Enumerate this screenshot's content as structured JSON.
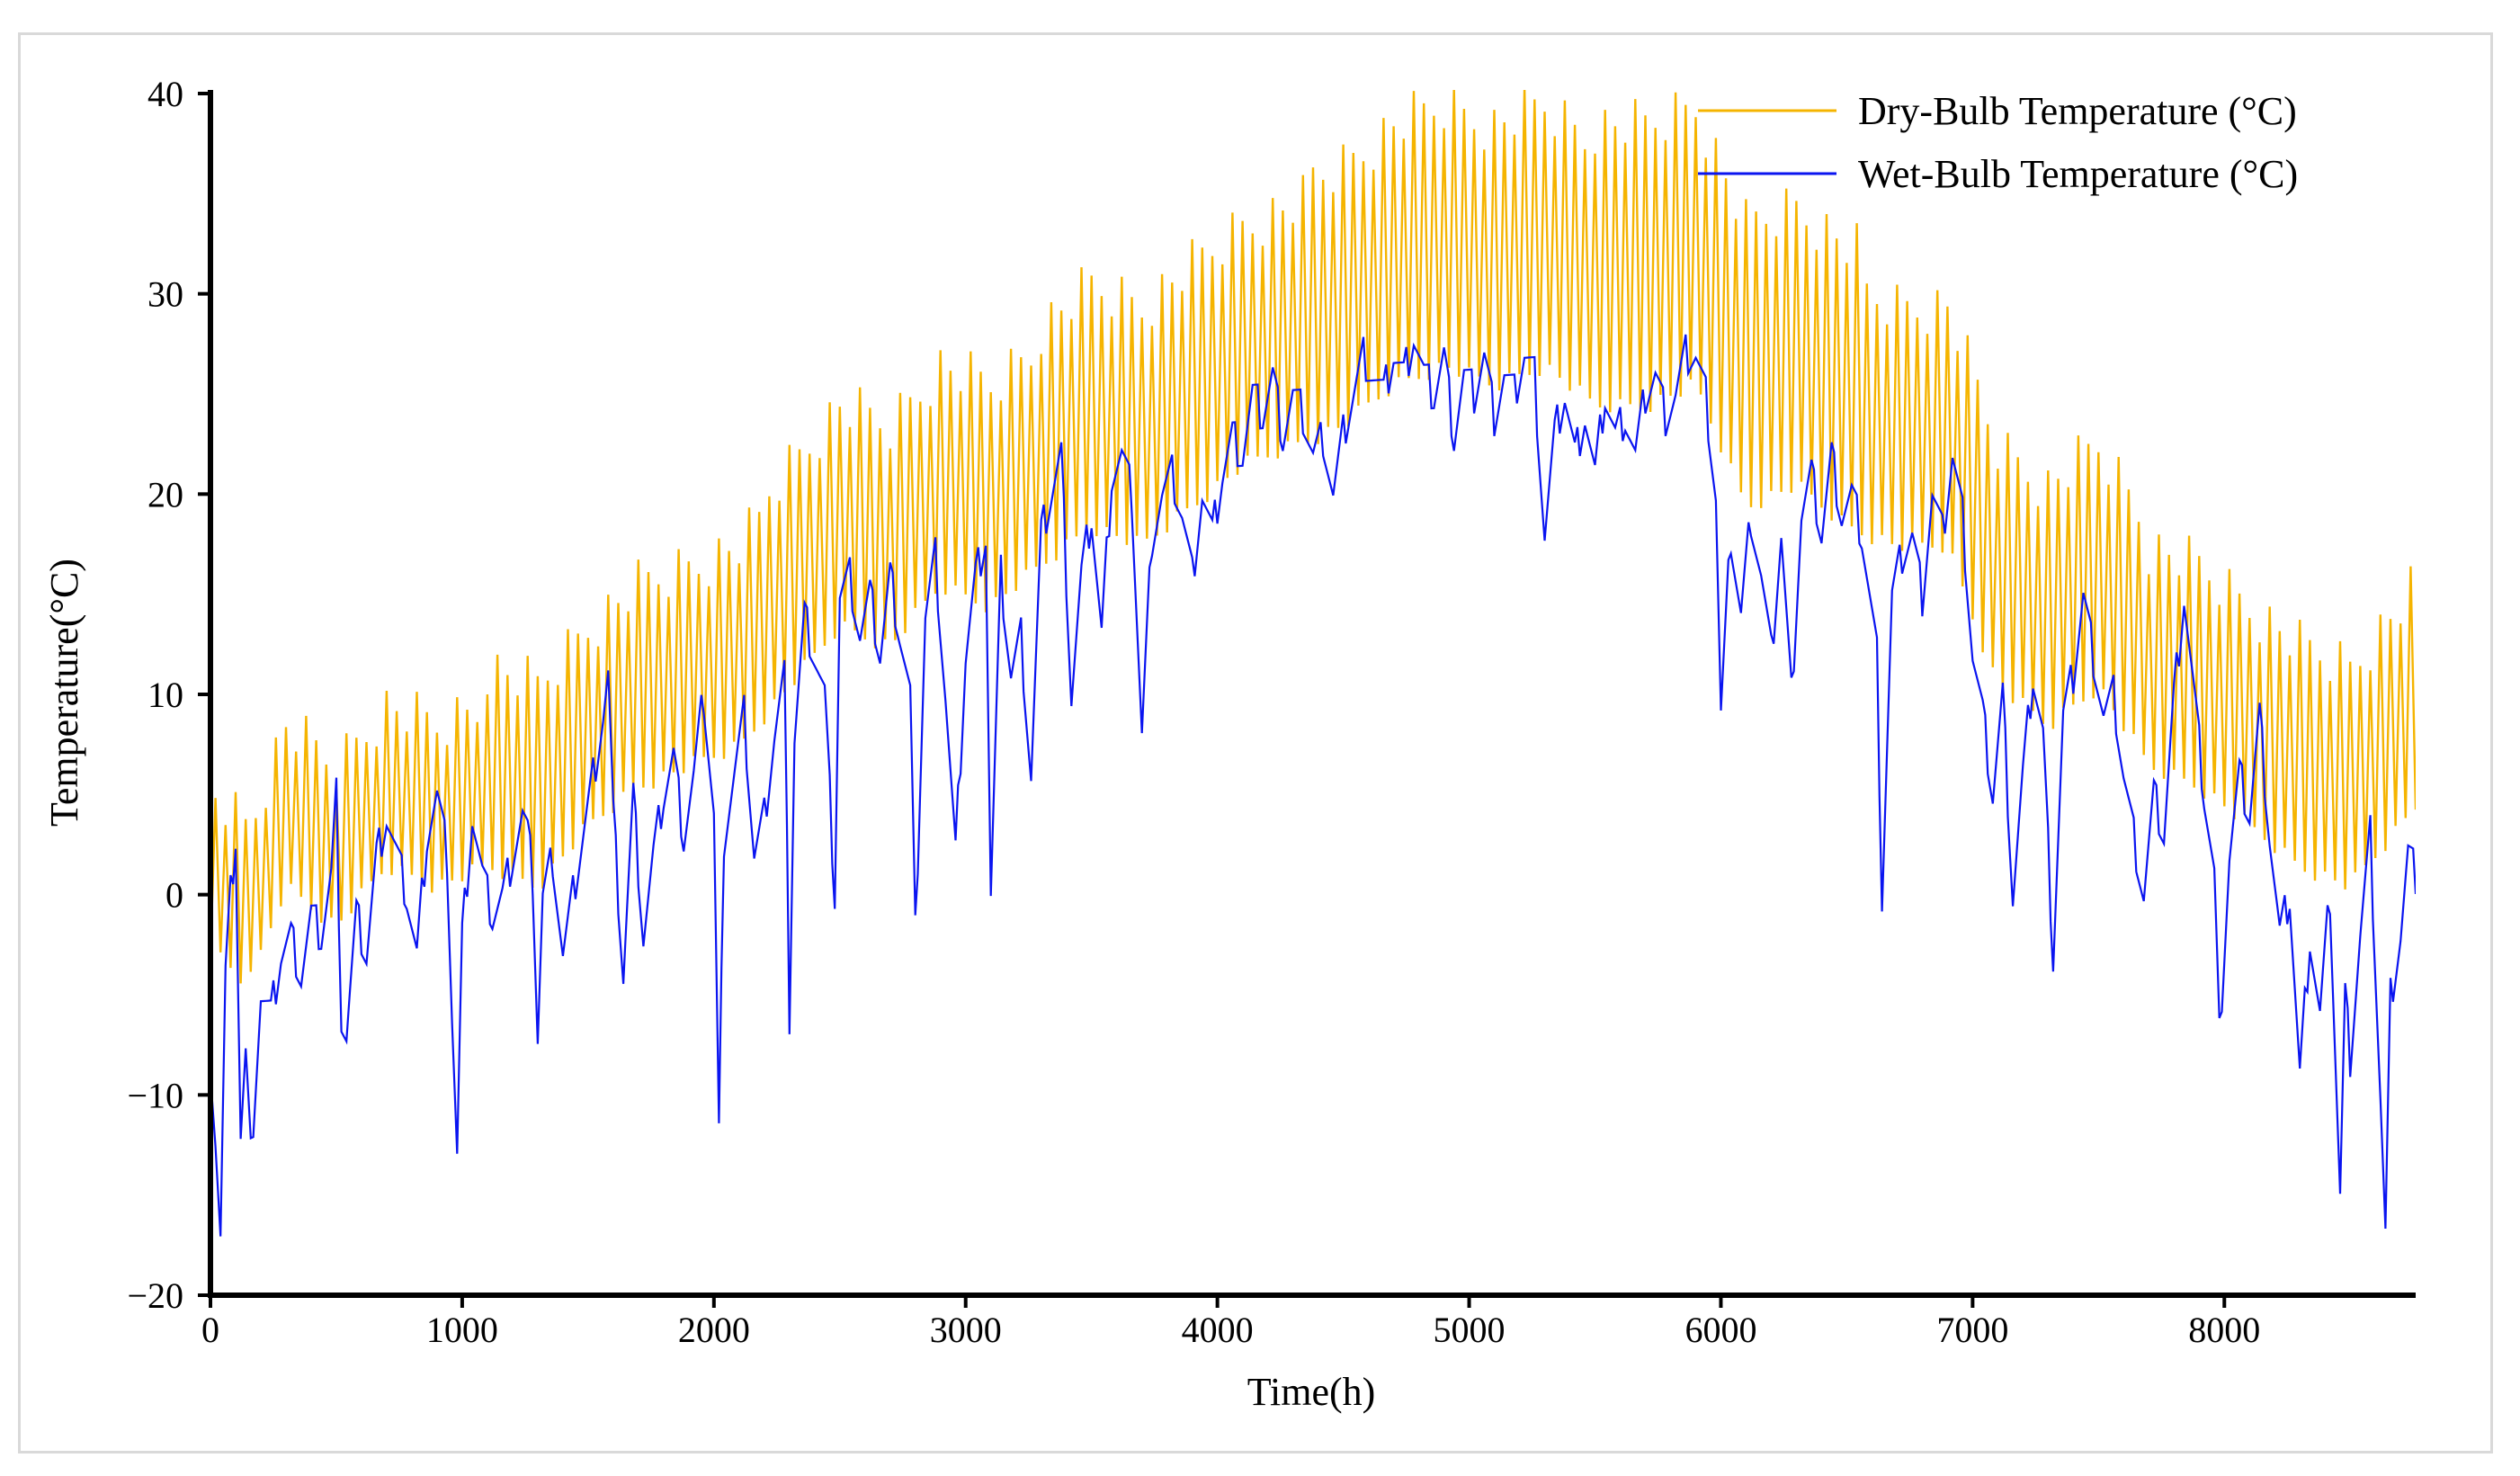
{
  "chart_data": {
    "type": "line",
    "title": "",
    "xlabel": "Time(h)",
    "ylabel": "Temperature(°C)",
    "xlim": [
      0,
      8760
    ],
    "ylim": [
      -20,
      40
    ],
    "xticks": [
      0,
      1000,
      2000,
      3000,
      4000,
      5000,
      6000,
      7000,
      8000
    ],
    "yticks": [
      -20,
      -10,
      0,
      10,
      20,
      30,
      40
    ],
    "xtick_labels": [
      "0",
      "1000",
      "2000",
      "3000",
      "4000",
      "5000",
      "6000",
      "7000",
      "8000"
    ],
    "ytick_labels": [
      "−20",
      "−10",
      "0",
      "10",
      "20",
      "30",
      "40"
    ],
    "grid": false,
    "legend_position": "top-right",
    "sampling_step_hours": 20,
    "series": [
      {
        "name": "Dry-Bulb Temperature (°C)",
        "color": "#f5b400",
        "daily_range": [
          7,
          9,
          10,
          11,
          12,
          13,
          11,
          10,
          8
        ],
        "lows": [
          [
            0,
            -3
          ],
          [
            150,
            -5
          ],
          [
            300,
            0
          ],
          [
            500,
            -2
          ],
          [
            700,
            1
          ],
          [
            900,
            0
          ],
          [
            1100,
            1
          ],
          [
            1300,
            0
          ],
          [
            1500,
            3
          ],
          [
            1700,
            5
          ],
          [
            1900,
            6
          ],
          [
            2100,
            7
          ],
          [
            2300,
            10
          ],
          [
            2500,
            13
          ],
          [
            2700,
            12
          ],
          [
            2900,
            15
          ],
          [
            3100,
            14
          ],
          [
            3300,
            16
          ],
          [
            3500,
            18
          ],
          [
            3700,
            17
          ],
          [
            3900,
            19
          ],
          [
            4100,
            21
          ],
          [
            4300,
            22
          ],
          [
            4500,
            23
          ],
          [
            4700,
            25
          ],
          [
            4900,
            26
          ],
          [
            5100,
            25
          ],
          [
            5300,
            26
          ],
          [
            5500,
            24
          ],
          [
            5700,
            24
          ],
          [
            5900,
            25
          ],
          [
            6100,
            19
          ],
          [
            6300,
            20
          ],
          [
            6500,
            18
          ],
          [
            6700,
            17
          ],
          [
            6900,
            17
          ],
          [
            7100,
            10
          ],
          [
            7300,
            8
          ],
          [
            7500,
            10
          ],
          [
            7700,
            6
          ],
          [
            7900,
            5
          ],
          [
            8100,
            3
          ],
          [
            8300,
            1
          ],
          [
            8500,
            0
          ],
          [
            8700,
            3
          ],
          [
            8760,
            4
          ]
        ]
      },
      {
        "name": "Wet-Bulb Temperature (°C)",
        "color": "#0a14f0",
        "points": [
          [
            0,
            -8
          ],
          [
            20,
            -12
          ],
          [
            40,
            -17
          ],
          [
            60,
            -4
          ],
          [
            80,
            0
          ],
          [
            100,
            3
          ],
          [
            120,
            -12
          ],
          [
            140,
            -8
          ],
          [
            160,
            -13
          ],
          [
            180,
            -9
          ],
          [
            200,
            -5
          ],
          [
            240,
            -6
          ],
          [
            280,
            -3
          ],
          [
            320,
            -2
          ],
          [
            360,
            -4
          ],
          [
            400,
            -1
          ],
          [
            440,
            -2
          ],
          [
            480,
            1
          ],
          [
            500,
            5
          ],
          [
            520,
            -6
          ],
          [
            540,
            -7
          ],
          [
            580,
            -1
          ],
          [
            620,
            -3
          ],
          [
            660,
            2
          ],
          [
            700,
            4
          ],
          [
            740,
            2
          ],
          [
            780,
            0
          ],
          [
            820,
            -3
          ],
          [
            860,
            3
          ],
          [
            900,
            5
          ],
          [
            940,
            2
          ],
          [
            960,
            -6
          ],
          [
            980,
            -13
          ],
          [
            1000,
            -2
          ],
          [
            1040,
            4
          ],
          [
            1080,
            1
          ],
          [
            1120,
            -1
          ],
          [
            1160,
            0
          ],
          [
            1200,
            2
          ],
          [
            1240,
            4
          ],
          [
            1260,
            3
          ],
          [
            1280,
            1
          ],
          [
            1300,
            -7
          ],
          [
            1320,
            0
          ],
          [
            1360,
            2
          ],
          [
            1400,
            -3
          ],
          [
            1440,
            0
          ],
          [
            1480,
            3
          ],
          [
            1520,
            6
          ],
          [
            1560,
            9
          ],
          [
            1580,
            11
          ],
          [
            1600,
            4
          ],
          [
            1640,
            -4
          ],
          [
            1680,
            5
          ],
          [
            1720,
            -2
          ],
          [
            1760,
            2
          ],
          [
            1800,
            5
          ],
          [
            1840,
            7
          ],
          [
            1880,
            3
          ],
          [
            1920,
            6
          ],
          [
            1960,
            10
          ],
          [
            2000,
            4
          ],
          [
            2020,
            -12
          ],
          [
            2040,
            3
          ],
          [
            2080,
            6
          ],
          [
            2120,
            9
          ],
          [
            2160,
            2
          ],
          [
            2200,
            4
          ],
          [
            2240,
            8
          ],
          [
            2280,
            11
          ],
          [
            2300,
            -6
          ],
          [
            2320,
            8
          ],
          [
            2360,
            14
          ],
          [
            2400,
            12
          ],
          [
            2440,
            10
          ],
          [
            2480,
            0
          ],
          [
            2500,
            15
          ],
          [
            2540,
            16
          ],
          [
            2580,
            13
          ],
          [
            2620,
            15
          ],
          [
            2660,
            12
          ],
          [
            2700,
            16
          ],
          [
            2740,
            13
          ],
          [
            2780,
            10
          ],
          [
            2800,
            -2
          ],
          [
            2840,
            14
          ],
          [
            2880,
            17
          ],
          [
            2920,
            10
          ],
          [
            2960,
            2
          ],
          [
            3000,
            12
          ],
          [
            3040,
            16
          ],
          [
            3080,
            18
          ],
          [
            3100,
            0
          ],
          [
            3140,
            16
          ],
          [
            3180,
            11
          ],
          [
            3220,
            13
          ],
          [
            3260,
            6
          ],
          [
            3300,
            18
          ],
          [
            3340,
            20
          ],
          [
            3380,
            22
          ],
          [
            3420,
            10
          ],
          [
            3460,
            16
          ],
          [
            3500,
            19
          ],
          [
            3540,
            13
          ],
          [
            3580,
            21
          ],
          [
            3620,
            22
          ],
          [
            3660,
            20
          ],
          [
            3700,
            8
          ],
          [
            3740,
            18
          ],
          [
            3780,
            20
          ],
          [
            3820,
            21
          ],
          [
            3860,
            19
          ],
          [
            3900,
            16
          ],
          [
            3940,
            20
          ],
          [
            3980,
            18
          ],
          [
            4020,
            21
          ],
          [
            4060,
            23
          ],
          [
            4100,
            22
          ],
          [
            4140,
            25
          ],
          [
            4180,
            24
          ],
          [
            4220,
            26
          ],
          [
            4260,
            23
          ],
          [
            4300,
            25
          ],
          [
            4340,
            24
          ],
          [
            4380,
            22
          ],
          [
            4420,
            23
          ],
          [
            4460,
            20
          ],
          [
            4500,
            23
          ],
          [
            4540,
            25
          ],
          [
            4580,
            27
          ],
          [
            4620,
            26
          ],
          [
            4660,
            25
          ],
          [
            4700,
            27
          ],
          [
            4740,
            26
          ],
          [
            4780,
            28
          ],
          [
            4820,
            26
          ],
          [
            4860,
            25
          ],
          [
            4900,
            27
          ],
          [
            4940,
            23
          ],
          [
            4980,
            26
          ],
          [
            5020,
            25
          ],
          [
            5060,
            27
          ],
          [
            5100,
            24
          ],
          [
            5140,
            26
          ],
          [
            5180,
            25
          ],
          [
            5220,
            27
          ],
          [
            5260,
            26
          ],
          [
            5300,
            18
          ],
          [
            5340,
            23
          ],
          [
            5380,
            25
          ],
          [
            5420,
            22
          ],
          [
            5460,
            24
          ],
          [
            5500,
            21
          ],
          [
            5540,
            25
          ],
          [
            5580,
            23
          ],
          [
            5620,
            24
          ],
          [
            5660,
            22
          ],
          [
            5700,
            25
          ],
          [
            5740,
            26
          ],
          [
            5780,
            24
          ],
          [
            5820,
            25
          ],
          [
            5860,
            27
          ],
          [
            5900,
            27
          ],
          [
            5940,
            25
          ],
          [
            5980,
            20
          ],
          [
            6000,
            9
          ],
          [
            6040,
            18
          ],
          [
            6080,
            14
          ],
          [
            6120,
            19
          ],
          [
            6160,
            16
          ],
          [
            6200,
            12
          ],
          [
            6240,
            18
          ],
          [
            6280,
            10
          ],
          [
            6320,
            19
          ],
          [
            6360,
            21
          ],
          [
            6400,
            18
          ],
          [
            6440,
            22
          ],
          [
            6480,
            19
          ],
          [
            6520,
            20
          ],
          [
            6560,
            18
          ],
          [
            6600,
            14
          ],
          [
            6620,
            12
          ],
          [
            6640,
            0
          ],
          [
            6680,
            15
          ],
          [
            6720,
            17
          ],
          [
            6760,
            18
          ],
          [
            6800,
            15
          ],
          [
            6840,
            20
          ],
          [
            6880,
            18
          ],
          [
            6920,
            22
          ],
          [
            6960,
            19
          ],
          [
            7000,
            12
          ],
          [
            7040,
            9
          ],
          [
            7080,
            5
          ],
          [
            7120,
            10
          ],
          [
            7160,
            0
          ],
          [
            7200,
            6
          ],
          [
            7240,
            11
          ],
          [
            7280,
            8
          ],
          [
            7320,
            -3
          ],
          [
            7360,
            9
          ],
          [
            7400,
            11
          ],
          [
            7440,
            15
          ],
          [
            7480,
            12
          ],
          [
            7520,
            9
          ],
          [
            7560,
            10
          ],
          [
            7600,
            6
          ],
          [
            7640,
            3
          ],
          [
            7680,
            0
          ],
          [
            7720,
            5
          ],
          [
            7760,
            3
          ],
          [
            7800,
            10
          ],
          [
            7840,
            15
          ],
          [
            7880,
            10
          ],
          [
            7920,
            5
          ],
          [
            7960,
            1
          ],
          [
            7980,
            -7
          ],
          [
            8020,
            2
          ],
          [
            8060,
            6
          ],
          [
            8100,
            4
          ],
          [
            8140,
            9
          ],
          [
            8180,
            3
          ],
          [
            8220,
            -2
          ],
          [
            8260,
            0
          ],
          [
            8300,
            -9
          ],
          [
            8340,
            -2
          ],
          [
            8380,
            -6
          ],
          [
            8420,
            0
          ],
          [
            8460,
            -15
          ],
          [
            8480,
            -5
          ],
          [
            8500,
            -8
          ],
          [
            8540,
            -2
          ],
          [
            8580,
            3
          ],
          [
            8620,
            -10
          ],
          [
            8640,
            -17
          ],
          [
            8660,
            -5
          ],
          [
            8700,
            -2
          ],
          [
            8730,
            2
          ],
          [
            8760,
            1
          ]
        ]
      }
    ]
  }
}
